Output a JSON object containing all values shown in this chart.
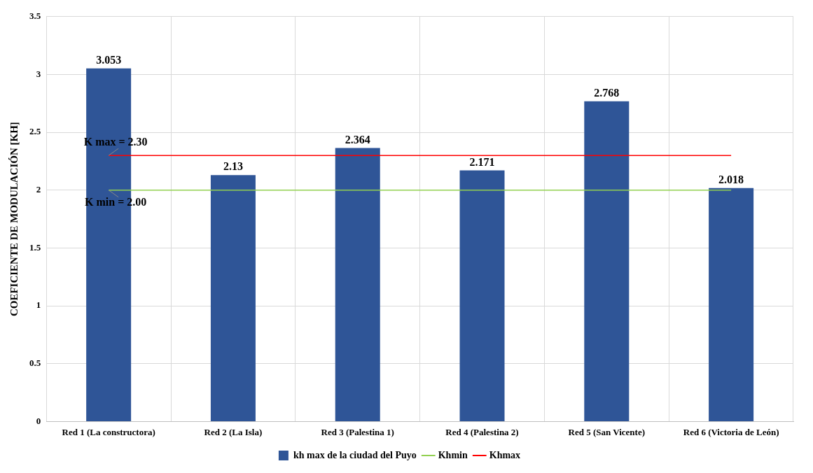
{
  "chart_data": {
    "type": "bar",
    "ylabel": "COEFICIENTE DE MODULACIÓN [KH]",
    "categories": [
      "Red 1 (La constructora)",
      "Red 2 (La Isla)",
      "Red 3 (Palestina 1)",
      "Red 4 (Palestina 2)",
      "Red 5 (San Vicente)",
      "Red 6 (Victoria de León)"
    ],
    "series": [
      {
        "name": "kh max de la ciudad del Puyo",
        "color": "#2f5597",
        "values": [
          3.053,
          2.13,
          2.364,
          2.171,
          2.768,
          2.018
        ],
        "value_labels": [
          "3.053",
          "2.13",
          "2.364",
          "2.171",
          "2.768",
          "2.018"
        ]
      },
      {
        "name": "Khmin",
        "type": "line",
        "color": "#92d050",
        "values": [
          2,
          2,
          2,
          2,
          2,
          2
        ]
      },
      {
        "name": "Khmax",
        "type": "line",
        "color": "#ff0000",
        "values": [
          2.3,
          2.3,
          2.3,
          2.3,
          2.3,
          2.3
        ]
      }
    ],
    "ylim": [
      0,
      3.5
    ],
    "yticks": [
      0,
      0.5,
      1,
      1.5,
      2,
      2.5,
      3,
      3.5
    ],
    "annotations": [
      {
        "text": "K max = 2.30",
        "x": "Red 1 (La constructora)",
        "y": 2.3
      },
      {
        "text": "K min = 2.00",
        "x": "Red 1 (La constructora)",
        "y": 2
      }
    ],
    "grid": true,
    "legend": "bottom",
    "marker": "none"
  }
}
